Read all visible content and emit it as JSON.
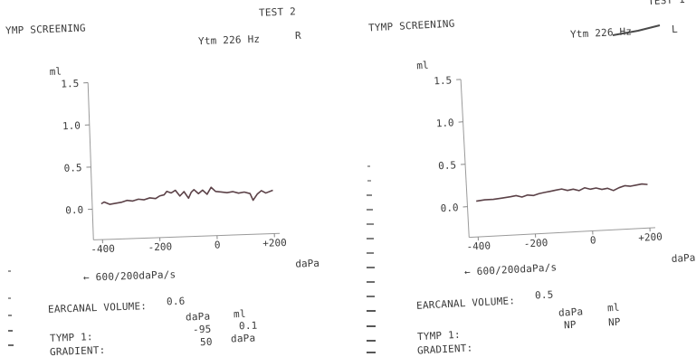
{
  "chart_data": [
    {
      "type": "line",
      "title": "YMP SCREENING",
      "test_label": "TEST 2",
      "probe_label": "Ytm 226 Hz",
      "ear": "R",
      "ylabel": "ml",
      "xlabel": "daPa",
      "x_ticks": [
        "-400",
        "-200",
        "0",
        "+200"
      ],
      "y_ticks": [
        "1.5",
        "1.0",
        "0.5",
        "0.0"
      ],
      "xlim": [
        -400,
        200
      ],
      "ylim": [
        0,
        1.5
      ],
      "x": [
        -400,
        -390,
        -370,
        -350,
        -330,
        -310,
        -290,
        -270,
        -250,
        -230,
        -210,
        -195,
        -180,
        -170,
        -155,
        -140,
        -125,
        -110,
        -95,
        -85,
        -75,
        -60,
        -45,
        -30,
        -15,
        0,
        20,
        40,
        60,
        80,
        100,
        120,
        130,
        145,
        160,
        175,
        200
      ],
      "series": [
        {
          "values": [
            0.06,
            0.08,
            0.05,
            0.06,
            0.07,
            0.09,
            0.08,
            0.1,
            0.09,
            0.11,
            0.1,
            0.13,
            0.14,
            0.18,
            0.16,
            0.19,
            0.12,
            0.17,
            0.09,
            0.16,
            0.19,
            0.14,
            0.18,
            0.13,
            0.21,
            0.16,
            0.15,
            0.14,
            0.15,
            0.13,
            0.14,
            0.12,
            0.04,
            0.11,
            0.15,
            0.12,
            0.15
          ]
        }
      ],
      "speed_label": "600/200daPa/s",
      "earcanal_label": "EARCANAL VOLUME:",
      "earcanal_value": "0.6",
      "table_headers": [
        "daPa",
        "ml"
      ],
      "tymp_label": "TYMP 1:",
      "tymp_values": [
        "-95",
        "0.1"
      ],
      "gradient_label": "GRADIENT:",
      "gradient_values": [
        "50",
        "daPa"
      ]
    },
    {
      "type": "line",
      "title": "TYMP SCREENING",
      "test_label": "TEST 1",
      "probe_label": "Ytm 226 Hz",
      "ear": "L",
      "ylabel": "ml",
      "xlabel": "daPa",
      "x_ticks": [
        "-400",
        "-200",
        "0",
        "+200"
      ],
      "y_ticks": [
        "1.5",
        "1.0",
        "0.5",
        "0.0"
      ],
      "xlim": [
        -400,
        200
      ],
      "ylim": [
        0,
        1.5
      ],
      "x": [
        -400,
        -370,
        -340,
        -310,
        -280,
        -260,
        -240,
        -220,
        -200,
        -180,
        -160,
        -140,
        -120,
        -100,
        -80,
        -60,
        -40,
        -20,
        0,
        20,
        40,
        60,
        80,
        100,
        120,
        140,
        160,
        180,
        200
      ],
      "series": [
        {
          "values": [
            0.06,
            0.07,
            0.07,
            0.08,
            0.09,
            0.1,
            0.08,
            0.1,
            0.09,
            0.11,
            0.12,
            0.13,
            0.14,
            0.15,
            0.13,
            0.14,
            0.12,
            0.15,
            0.13,
            0.14,
            0.12,
            0.13,
            0.1,
            0.13,
            0.15,
            0.14,
            0.15,
            0.16,
            0.15
          ]
        }
      ],
      "speed_label": "600/200daPa/s",
      "earcanal_label": "EARCANAL VOLUME:",
      "earcanal_value": "0.5",
      "table_headers": [
        "daPa",
        "ml"
      ],
      "tymp_label": "TYMP 1:",
      "tymp_values": [
        "NP",
        "NP"
      ],
      "gradient_label": "GRADIENT:",
      "gradient_values": [
        "",
        ""
      ]
    }
  ]
}
